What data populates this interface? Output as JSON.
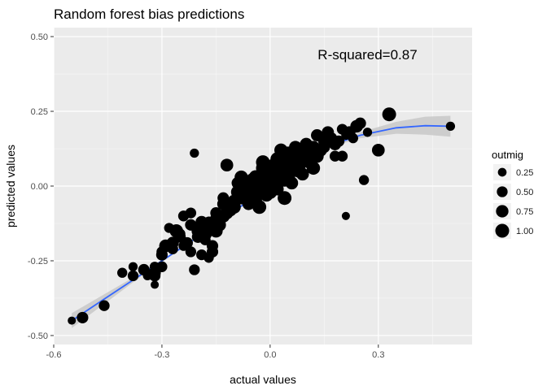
{
  "chart_data": {
    "type": "scatter",
    "title": "Random forest bias predictions",
    "xlabel": "actual values",
    "ylabel": "predicted values",
    "xlim": [
      -0.6,
      0.56
    ],
    "ylim": [
      -0.53,
      0.53
    ],
    "x_ticks": [
      -0.6,
      -0.3,
      0.0,
      0.3
    ],
    "x_tick_labels": [
      "-0.6",
      "-0.3",
      "0.0",
      "0.3"
    ],
    "y_ticks": [
      -0.5,
      -0.25,
      0.0,
      0.25,
      0.5
    ],
    "y_tick_labels": [
      "-0.50",
      "-0.25",
      "0.00",
      "0.25",
      "0.50"
    ],
    "grid": true,
    "annotation": {
      "text": "R-squared=0.87",
      "x": 0.27,
      "y": 0.44
    },
    "size_legend": {
      "title": "outmig",
      "placement": "right",
      "entries": [
        {
          "label": "0.25",
          "value": 0.25
        },
        {
          "label": "0.50",
          "value": 0.5
        },
        {
          "label": "0.75",
          "value": 0.75
        },
        {
          "label": "1.00",
          "value": 1.0
        }
      ]
    },
    "smooth": {
      "method": "loess",
      "color": "#3366ff",
      "band_color": "#c8c8c8",
      "x": [
        -0.55,
        -0.45,
        -0.35,
        -0.25,
        -0.15,
        -0.05,
        0.05,
        0.15,
        0.25,
        0.35,
        0.43,
        0.5
      ],
      "y": [
        -0.45,
        -0.37,
        -0.29,
        -0.21,
        -0.13,
        -0.04,
        0.05,
        0.13,
        0.17,
        0.195,
        0.202,
        0.2
      ],
      "lower": [
        -0.475,
        -0.385,
        -0.295,
        -0.213,
        -0.133,
        -0.043,
        0.047,
        0.124,
        0.16,
        0.175,
        0.172,
        0.165
      ],
      "upper": [
        -0.425,
        -0.355,
        -0.285,
        -0.207,
        -0.127,
        -0.037,
        0.053,
        0.136,
        0.18,
        0.215,
        0.232,
        0.235
      ]
    },
    "series": [
      {
        "x": [
          -0.55,
          -0.52,
          -0.46,
          -0.41,
          -0.38,
          -0.38,
          -0.35,
          -0.34,
          -0.32,
          -0.32,
          -0.32,
          -0.3,
          -0.3,
          -0.29,
          -0.27,
          -0.26,
          -0.25,
          -0.24,
          -0.24,
          -0.22,
          -0.22,
          -0.21,
          -0.2,
          -0.2,
          -0.19,
          -0.18,
          -0.18,
          -0.17,
          -0.17,
          -0.16,
          -0.16,
          -0.15,
          -0.15,
          -0.14,
          -0.13,
          -0.13,
          -0.12,
          -0.11,
          -0.1,
          -0.09,
          -0.08,
          -0.07,
          -0.06,
          -0.06,
          -0.05,
          -0.04,
          -0.04,
          -0.03,
          -0.03,
          -0.02,
          -0.02,
          -0.01,
          -0.01,
          0.0,
          0.0,
          0.01,
          0.01,
          0.02,
          0.02,
          0.03,
          0.04,
          0.04,
          0.05,
          0.06,
          0.06,
          0.07,
          0.08,
          0.09,
          0.1,
          0.11,
          0.12,
          0.13,
          0.14,
          0.15,
          0.16,
          0.17,
          0.18,
          0.19,
          0.2,
          0.21,
          0.22,
          0.23,
          0.24,
          0.25,
          0.26,
          0.27,
          0.3,
          0.33,
          0.5,
          -0.04,
          -0.02,
          0.01,
          0.03,
          0.05,
          0.07,
          0.08,
          0.12,
          0.16,
          0.2,
          -0.01,
          -0.07,
          -0.11,
          -0.14,
          -0.23,
          -0.19,
          -0.27,
          -0.16,
          -0.25,
          -0.32,
          -0.21,
          0.21,
          0.09,
          0.04,
          0.06,
          0.02,
          -0.03,
          -0.05,
          -0.08,
          -0.1,
          -0.12,
          0.0,
          0.02,
          0.05,
          -0.02,
          0.1,
          0.13,
          0.15,
          0.18,
          -0.18,
          -0.15,
          -0.13,
          -0.09,
          -0.06,
          0.03,
          0.07,
          0.11,
          -0.28,
          -0.22,
          -0.3
        ],
        "y": [
          -0.45,
          -0.44,
          -0.4,
          -0.29,
          -0.27,
          -0.3,
          -0.28,
          -0.3,
          -0.33,
          -0.3,
          -0.29,
          -0.22,
          -0.27,
          -0.2,
          -0.19,
          -0.15,
          -0.17,
          -0.1,
          -0.2,
          -0.13,
          -0.22,
          -0.28,
          -0.15,
          -0.17,
          -0.23,
          -0.16,
          -0.14,
          -0.12,
          -0.24,
          -0.13,
          -0.2,
          -0.15,
          -0.11,
          -0.13,
          -0.1,
          -0.06,
          -0.09,
          -0.08,
          -0.07,
          -0.02,
          -0.04,
          -0.04,
          0.0,
          -0.06,
          -0.03,
          0.01,
          -0.05,
          0.02,
          -0.02,
          0.0,
          0.04,
          0.02,
          -0.03,
          0.05,
          0.01,
          0.03,
          0.07,
          0.06,
          -0.01,
          0.05,
          0.02,
          0.1,
          0.04,
          0.08,
          0.01,
          0.09,
          0.05,
          0.12,
          0.09,
          0.08,
          0.13,
          0.1,
          0.12,
          0.15,
          0.18,
          0.16,
          0.14,
          0.15,
          0.19,
          0.17,
          0.18,
          0.16,
          0.2,
          0.21,
          0.02,
          0.18,
          0.12,
          0.24,
          0.2,
          0.03,
          0.06,
          0.0,
          0.08,
          0.03,
          0.11,
          0.07,
          0.06,
          0.15,
          0.1,
          0.05,
          -0.02,
          -0.08,
          -0.1,
          -0.19,
          -0.12,
          -0.21,
          -0.22,
          -0.16,
          -0.27,
          0.11,
          -0.1,
          0.04,
          -0.04,
          0.06,
          0.09,
          -0.07,
          0.02,
          0.03,
          -0.05,
          0.07,
          -0.02,
          0.04,
          0.11,
          0.08,
          0.14,
          0.17,
          0.13,
          0.1,
          -0.18,
          -0.09,
          -0.04,
          0.01,
          -0.01,
          0.12,
          0.13,
          0.12,
          -0.14,
          -0.09,
          -0.23
        ],
        "size": [
          0.2,
          0.6,
          0.5,
          0.4,
          0.3,
          0.5,
          0.6,
          0.3,
          0.2,
          0.6,
          0.7,
          0.5,
          0.5,
          0.8,
          0.7,
          0.9,
          0.6,
          0.5,
          0.4,
          0.6,
          0.5,
          0.5,
          0.8,
          0.7,
          0.5,
          0.9,
          0.6,
          0.5,
          0.4,
          0.8,
          0.6,
          0.9,
          0.7,
          0.8,
          0.9,
          0.7,
          0.8,
          0.8,
          0.9,
          0.9,
          0.8,
          1.0,
          0.9,
          0.7,
          0.9,
          1.0,
          0.8,
          1.0,
          0.9,
          1.0,
          0.9,
          1.0,
          0.9,
          1.0,
          1.0,
          1.0,
          0.9,
          0.9,
          0.8,
          1.0,
          0.9,
          0.9,
          1.0,
          0.9,
          0.8,
          1.0,
          0.9,
          0.8,
          1.0,
          0.9,
          0.8,
          0.9,
          0.8,
          0.7,
          0.7,
          0.6,
          0.7,
          0.6,
          0.5,
          0.3,
          0.7,
          0.4,
          0.8,
          0.6,
          0.4,
          0.3,
          0.8,
          1.0,
          0.3,
          1.0,
          1.0,
          1.0,
          1.0,
          1.0,
          1.0,
          1.0,
          0.9,
          0.8,
          0.5,
          1.0,
          0.9,
          0.8,
          0.7,
          0.6,
          0.7,
          0.5,
          0.6,
          0.5,
          0.4,
          0.3,
          0.2,
          0.8,
          1.0,
          0.9,
          1.0,
          1.0,
          0.9,
          0.9,
          0.8,
          0.8,
          1.0,
          1.0,
          0.9,
          1.0,
          0.8,
          0.7,
          0.6,
          0.5,
          0.5,
          0.6,
          0.6,
          0.7,
          0.8,
          0.9,
          0.8,
          0.7,
          0.4,
          0.5,
          0.6
        ]
      }
    ]
  }
}
